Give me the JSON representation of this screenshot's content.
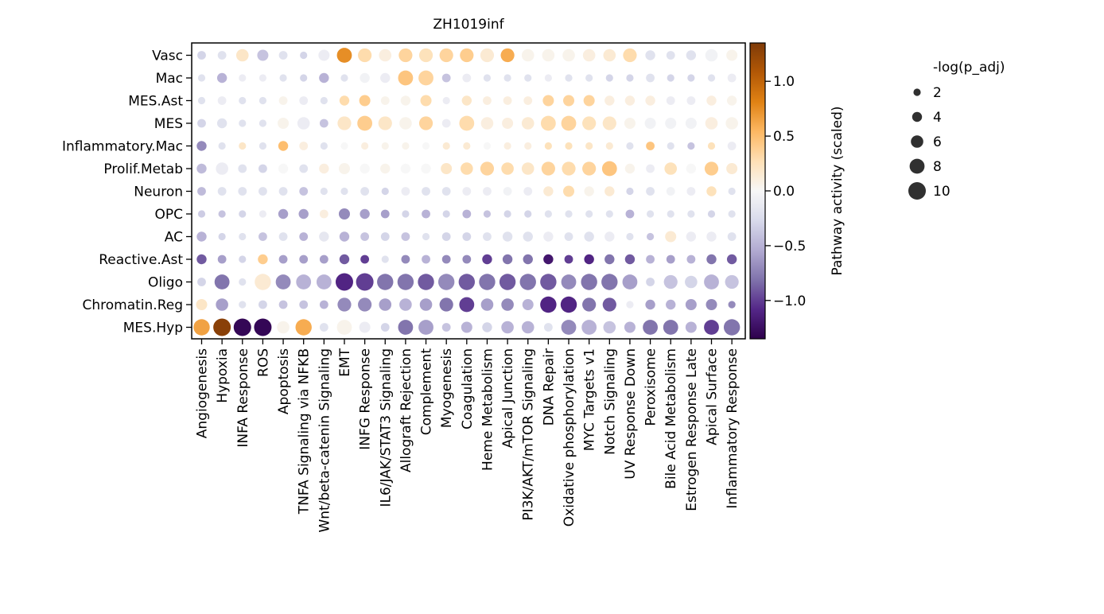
{
  "chart_data": {
    "type": "scatter",
    "subtype": "dotplot",
    "title": "ZH1019inf",
    "rows": [
      "Vasc",
      "Mac",
      "MES.Ast",
      "MES",
      "Inflammatory.Mac",
      "Prolif.Metab",
      "Neuron",
      "OPC",
      "AC",
      "Reactive.Ast",
      "Oligo",
      "Chromatin.Reg",
      "MES.Hyp"
    ],
    "columns": [
      "Angiogenesis",
      "Hypoxia",
      "INFA Response",
      "ROS",
      "Apoptosis",
      "TNFA Signaling via NFKB",
      "Wnt/beta-catenin Signaling",
      "EMT",
      "INFG Response",
      "IL6/JAK/STAT3 Signaling",
      "Allograft Rejection",
      "Complement",
      "Myogenesis",
      "Coagulation",
      "Heme Metabolism",
      "Apical Junction",
      "PI3K/AKT/mTOR Signaling",
      "DNA Repair",
      "Oxidative phosphorylation",
      "MYC Targets v1",
      "Notch Signaling",
      "UV Response Down",
      "Peroxisome",
      "Bile Acid Metabolism",
      "Estrogen Response Late",
      "Apical Surface",
      "Inflammatory Response"
    ],
    "color_values": [
      [
        -0.3,
        -0.2,
        0.2,
        -0.4,
        -0.2,
        -0.3,
        -0.1,
        0.75,
        0.3,
        0.1,
        0.35,
        0.25,
        0.35,
        0.4,
        0.15,
        0.6,
        0.05,
        0.05,
        0.05,
        0.1,
        0.15,
        0.3,
        -0.2,
        -0.2,
        -0.2,
        -0.05,
        0.05
      ],
      [
        -0.2,
        -0.5,
        -0.1,
        -0.1,
        -0.2,
        -0.3,
        -0.5,
        -0.2,
        -0.05,
        -0.1,
        0.45,
        0.35,
        -0.4,
        -0.1,
        -0.2,
        -0.2,
        -0.2,
        -0.1,
        -0.2,
        -0.2,
        -0.3,
        -0.3,
        -0.2,
        -0.3,
        -0.3,
        -0.2,
        -0.1
      ],
      [
        -0.2,
        -0.1,
        -0.2,
        -0.2,
        0.05,
        -0.1,
        -0.2,
        0.3,
        0.4,
        0.05,
        0.05,
        0.3,
        -0.1,
        0.2,
        0.1,
        0.1,
        0.1,
        0.35,
        0.35,
        0.35,
        0.1,
        0.1,
        0.1,
        -0.1,
        -0.1,
        0.1,
        0.05
      ],
      [
        -0.3,
        -0.2,
        -0.2,
        -0.2,
        0.05,
        -0.1,
        -0.4,
        0.2,
        0.4,
        0.2,
        0.05,
        0.35,
        -0.1,
        0.3,
        0.1,
        0.1,
        0.15,
        0.3,
        0.35,
        0.25,
        0.2,
        0.05,
        -0.05,
        -0.05,
        -0.05,
        0.1,
        0.05
      ],
      [
        -0.7,
        -0.2,
        0.2,
        -0.2,
        0.5,
        0.1,
        -0.2,
        0.0,
        0.1,
        0.05,
        0.05,
        0.0,
        0.15,
        0.15,
        0.0,
        0.1,
        0.1,
        0.25,
        0.25,
        0.2,
        0.15,
        -0.2,
        0.45,
        -0.2,
        -0.4,
        0.25,
        -0.1
      ],
      [
        -0.45,
        -0.1,
        -0.2,
        -0.3,
        0.0,
        -0.2,
        0.1,
        0.05,
        0.0,
        0.05,
        0.0,
        0.0,
        0.2,
        0.3,
        0.35,
        0.3,
        0.2,
        0.35,
        0.3,
        0.35,
        0.45,
        0.05,
        -0.1,
        0.25,
        0.0,
        0.4,
        0.15
      ],
      [
        -0.45,
        -0.2,
        -0.2,
        -0.2,
        -0.2,
        -0.4,
        -0.2,
        -0.2,
        -0.2,
        -0.3,
        -0.1,
        -0.2,
        -0.2,
        -0.1,
        -0.1,
        -0.05,
        -0.1,
        0.15,
        0.3,
        0.05,
        0.15,
        -0.3,
        -0.2,
        -0.05,
        -0.1,
        0.25,
        -0.2
      ],
      [
        -0.35,
        -0.4,
        -0.3,
        -0.1,
        -0.6,
        -0.6,
        0.1,
        -0.7,
        -0.6,
        -0.6,
        -0.3,
        -0.5,
        -0.3,
        -0.5,
        -0.4,
        -0.3,
        -0.3,
        -0.2,
        -0.2,
        -0.2,
        -0.2,
        -0.5,
        -0.2,
        -0.2,
        -0.2,
        -0.3,
        -0.2
      ],
      [
        -0.5,
        -0.3,
        -0.2,
        -0.4,
        -0.2,
        -0.5,
        -0.15,
        -0.5,
        -0.4,
        -0.3,
        -0.4,
        -0.2,
        -0.3,
        -0.3,
        -0.2,
        -0.2,
        -0.2,
        -0.1,
        -0.2,
        -0.2,
        -0.1,
        -0.2,
        -0.4,
        0.15,
        -0.1,
        -0.1,
        -0.2
      ],
      [
        -0.9,
        -0.6,
        -0.3,
        0.4,
        -0.6,
        -0.6,
        -0.6,
        -0.9,
        -1.0,
        -0.2,
        -0.7,
        -0.5,
        -0.7,
        -0.7,
        -1.0,
        -0.8,
        -0.8,
        -1.2,
        -1.0,
        -1.1,
        -0.8,
        -0.9,
        -0.5,
        -0.6,
        -0.5,
        -0.8,
        -0.9
      ],
      [
        -0.3,
        -0.8,
        -0.2,
        0.15,
        -0.7,
        -0.5,
        -0.5,
        -1.1,
        -1.0,
        -0.8,
        -0.8,
        -0.9,
        -0.7,
        -0.9,
        -0.8,
        -0.9,
        -0.8,
        -0.9,
        -0.7,
        -0.8,
        -0.8,
        -0.6,
        -0.3,
        -0.4,
        -0.3,
        -0.5,
        -0.4
      ],
      [
        0.2,
        -0.6,
        -0.2,
        -0.3,
        -0.4,
        -0.4,
        -0.5,
        -0.7,
        -0.7,
        -0.6,
        -0.5,
        -0.6,
        -0.8,
        -1.0,
        -0.6,
        -0.7,
        -0.5,
        -1.1,
        -1.1,
        -0.8,
        -0.9,
        -0.1,
        -0.6,
        -0.5,
        -0.6,
        -0.7,
        -0.7
      ],
      [
        0.65,
        1.3,
        -1.3,
        -1.3,
        0.05,
        0.6,
        -0.2,
        0.05,
        -0.1,
        -0.3,
        -0.8,
        -0.6,
        -0.4,
        -0.5,
        -0.3,
        -0.5,
        -0.5,
        -0.2,
        -0.7,
        -0.5,
        -0.4,
        -0.5,
        -0.8,
        -0.8,
        -0.5,
        -1.0,
        -0.8
      ]
    ],
    "size_values": [
      [
        3,
        3,
        6,
        5,
        3,
        2,
        5,
        8,
        7,
        6,
        7,
        7,
        7,
        7,
        7,
        7,
        6,
        6,
        6,
        6,
        6,
        7,
        4,
        3,
        4,
        6,
        5
      ],
      [
        2,
        4,
        2,
        2,
        2,
        2,
        4,
        2,
        4,
        4,
        8,
        8,
        3,
        3,
        2,
        2,
        2,
        2,
        2,
        2,
        2,
        2,
        3,
        2,
        2,
        2,
        3
      ],
      [
        2,
        3,
        2,
        2,
        3,
        3,
        2,
        4,
        5,
        3,
        4,
        5,
        2,
        4,
        3,
        3,
        3,
        5,
        5,
        5,
        4,
        4,
        4,
        3,
        3,
        4,
        4
      ],
      [
        3,
        4,
        2,
        2,
        5,
        6,
        3,
        7,
        8,
        7,
        6,
        7,
        3,
        8,
        6,
        5,
        6,
        8,
        8,
        7,
        7,
        5,
        5,
        5,
        5,
        6,
        6
      ],
      [
        4,
        2,
        2,
        2,
        4,
        3,
        2,
        2,
        2,
        2,
        2,
        2,
        2,
        2,
        2,
        2,
        2,
        2,
        2,
        2,
        2,
        2,
        3,
        2,
        2,
        2,
        3
      ],
      [
        4,
        6,
        3,
        3,
        4,
        3,
        4,
        5,
        4,
        4,
        4,
        4,
        5,
        6,
        7,
        6,
        6,
        7,
        7,
        7,
        8,
        4,
        3,
        6,
        4,
        7,
        5
      ],
      [
        3,
        3,
        3,
        3,
        3,
        3,
        2,
        2,
        3,
        2,
        3,
        3,
        3,
        3,
        3,
        3,
        3,
        4,
        5,
        4,
        4,
        2,
        3,
        3,
        3,
        4,
        2
      ],
      [
        2,
        2,
        2,
        2,
        4,
        4,
        3,
        5,
        4,
        3,
        2,
        3,
        2,
        3,
        2,
        2,
        2,
        2,
        2,
        2,
        2,
        3,
        2,
        2,
        2,
        2,
        2
      ],
      [
        4,
        2,
        2,
        3,
        3,
        3,
        4,
        4,
        3,
        3,
        3,
        2,
        3,
        3,
        3,
        4,
        4,
        4,
        3,
        4,
        4,
        2,
        2,
        5,
        4,
        4,
        3
      ],
      [
        4,
        3,
        2,
        4,
        3,
        3,
        3,
        4,
        3,
        2,
        3,
        3,
        3,
        3,
        4,
        4,
        4,
        4,
        3,
        4,
        4,
        4,
        3,
        3,
        3,
        4,
        4
      ],
      [
        3,
        8,
        2,
        9,
        8,
        8,
        8,
        10,
        10,
        9,
        9,
        9,
        9,
        9,
        9,
        9,
        9,
        9,
        8,
        9,
        9,
        8,
        3,
        7,
        6,
        8,
        7
      ],
      [
        5,
        6,
        2,
        3,
        3,
        3,
        3,
        7,
        7,
        6,
        6,
        6,
        7,
        8,
        6,
        6,
        5,
        9,
        9,
        7,
        7,
        2,
        4,
        4,
        5,
        5,
        2
      ],
      [
        9,
        10,
        10,
        10,
        6,
        9,
        3,
        8,
        5,
        3,
        8,
        8,
        3,
        5,
        4,
        6,
        6,
        3,
        8,
        8,
        6,
        5,
        8,
        8,
        5,
        8,
        9
      ]
    ],
    "colorbar": {
      "label": "Pathway activity (scaled)",
      "min": -1.35,
      "max": 1.35,
      "ticks": [
        1.0,
        0.5,
        0.0,
        -0.5,
        -1.0
      ],
      "tick_labels": [
        "1.0",
        "0.5",
        "0.0",
        "−0.5",
        "−1.0"
      ],
      "colors": [
        "#2d004b",
        "#542788",
        "#8073ac",
        "#b2abd2",
        "#d8daeb",
        "#f7f7f7",
        "#fee0b6",
        "#fdb863",
        "#e08214",
        "#b35806",
        "#7f3b08"
      ]
    },
    "size_legend": {
      "title": "-log(p_adj)",
      "entries": [
        {
          "label": "2",
          "value": 2
        },
        {
          "label": "4",
          "value": 4
        },
        {
          "label": "6",
          "value": 6
        },
        {
          "label": "8",
          "value": 8
        },
        {
          "label": "10",
          "value": 10
        }
      ]
    },
    "xlabel": "",
    "ylabel": ""
  }
}
